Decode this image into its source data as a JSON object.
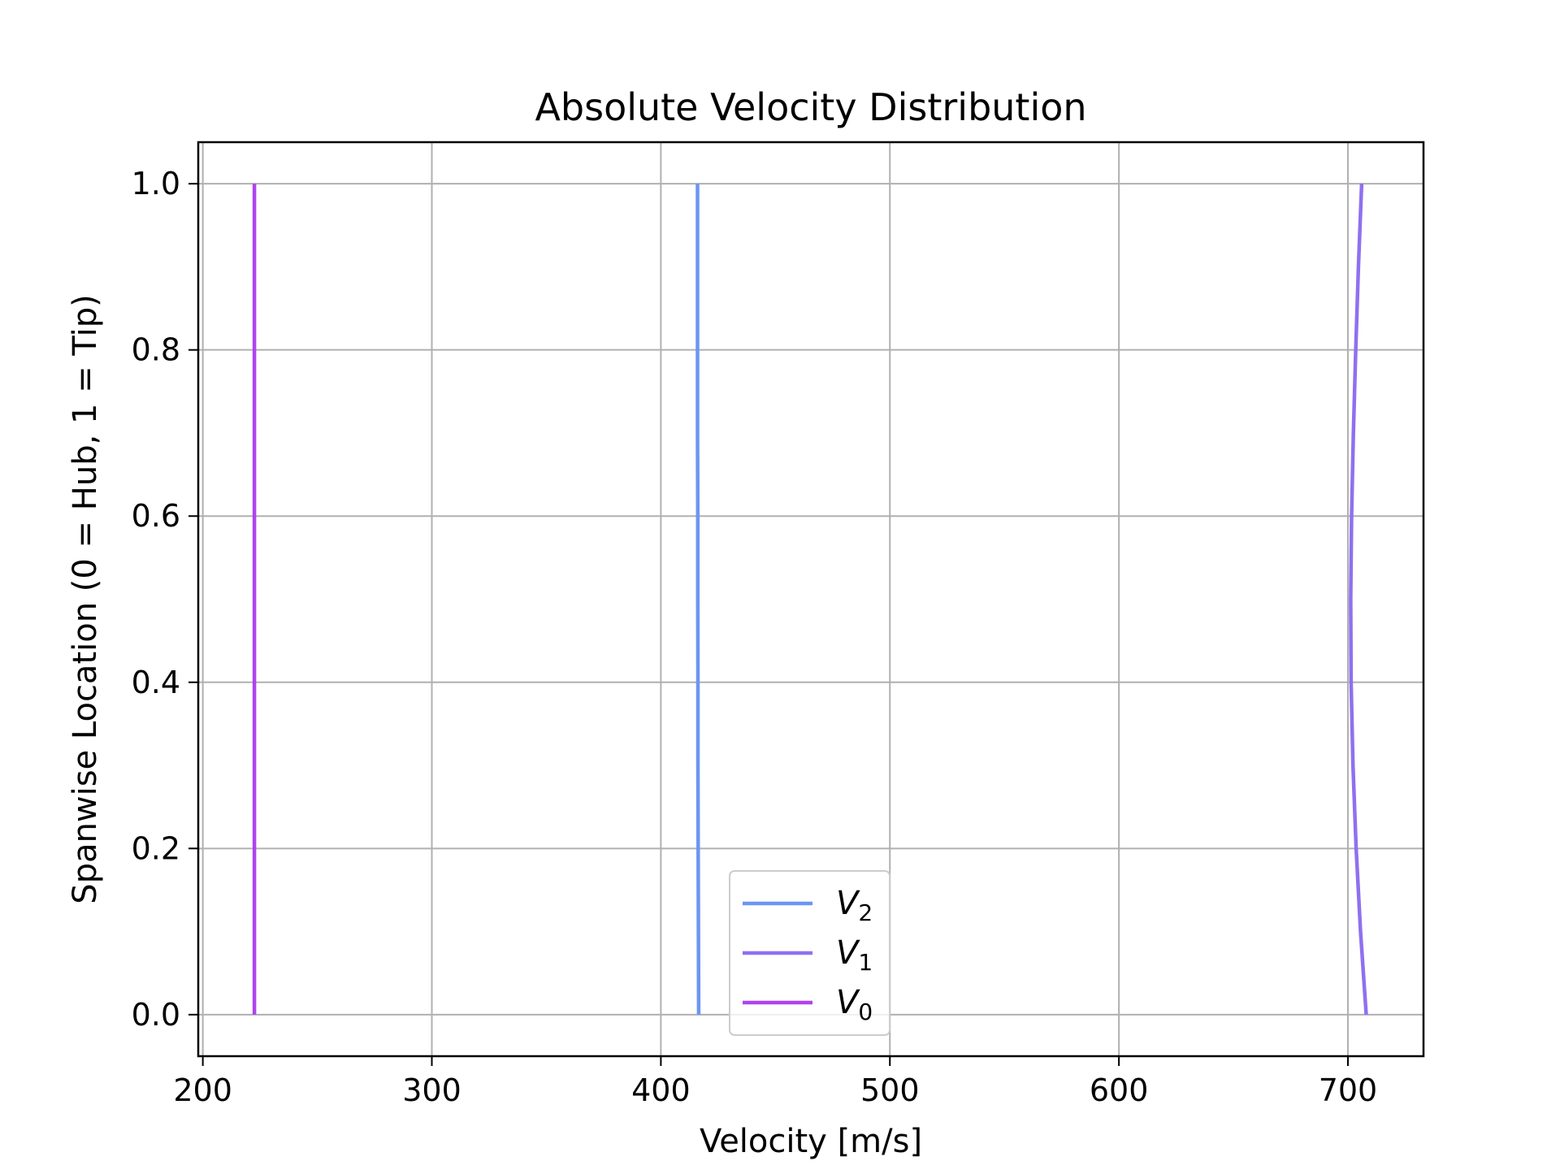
{
  "chart_data": {
    "type": "line",
    "title": "Absolute Velocity Distribution",
    "xlabel": "Velocity [m/s]",
    "ylabel": "Spanwise Location (0 = Hub, 1 = Tip)",
    "xlim": [
      198,
      733
    ],
    "ylim": [
      -0.05,
      1.05
    ],
    "xticks": [
      200,
      300,
      400,
      500,
      600,
      700
    ],
    "xtick_labels": [
      "200",
      "300",
      "400",
      "500",
      "600",
      "700"
    ],
    "yticks": [
      0.0,
      0.2,
      0.4,
      0.6,
      0.8,
      1.0
    ],
    "ytick_labels": [
      "0.0",
      "0.2",
      "0.4",
      "0.6",
      "0.8",
      "1.0"
    ],
    "grid": true,
    "legend_position": "lower-center",
    "series": [
      {
        "name": "V",
        "subscript": "2",
        "color": "#6b96f2",
        "x": [
          416.5,
          416.4,
          416.3,
          416.2,
          416.2,
          416.1,
          416.1,
          416.0,
          416.0,
          416.0,
          416.0
        ],
        "y": [
          0.0,
          0.1,
          0.2,
          0.3,
          0.4,
          0.5,
          0.6,
          0.7,
          0.8,
          0.9,
          1.0
        ]
      },
      {
        "name": "V",
        "subscript": "1",
        "color": "#8f70f0",
        "x": [
          708.0,
          705.5,
          703.6,
          702.2,
          701.4,
          701.2,
          701.6,
          702.4,
          703.4,
          704.6,
          706.0
        ],
        "y": [
          0.0,
          0.1,
          0.2,
          0.3,
          0.4,
          0.5,
          0.6,
          0.7,
          0.8,
          0.9,
          1.0
        ]
      },
      {
        "name": "V",
        "subscript": "0",
        "color": "#b042ef",
        "x": [
          222.5,
          222.5,
          222.5,
          222.5,
          222.5,
          222.5,
          222.5,
          222.5,
          222.5,
          222.5,
          222.5
        ],
        "y": [
          0.0,
          0.1,
          0.2,
          0.3,
          0.4,
          0.5,
          0.6,
          0.7,
          0.8,
          0.9,
          1.0
        ]
      }
    ]
  }
}
